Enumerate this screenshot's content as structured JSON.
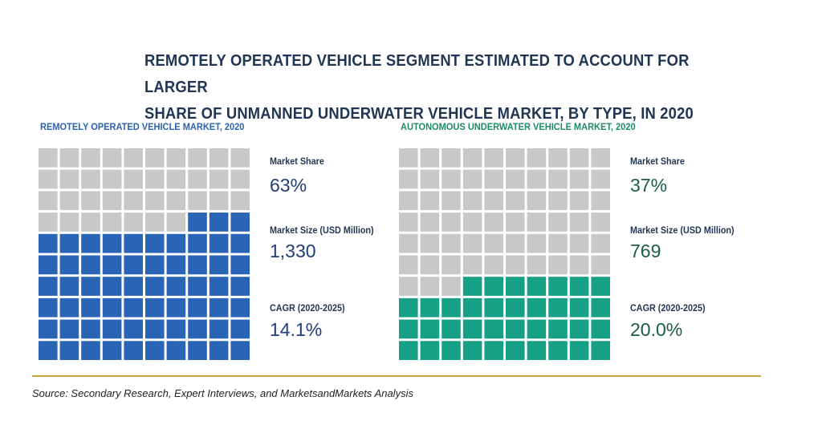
{
  "title_line1": "REMOTELY OPERATED VEHICLE SEGMENT ESTIMATED TO ACCOUNT FOR LARGER",
  "title_line2": "SHARE OF UNMANNED UNDERWATER VEHICLE MARKET, BY TYPE, IN 2020",
  "source": "Source: Secondary Research, Expert Interviews, and MarketsandMarkets Analysis",
  "colors": {
    "rov_fill": "#2a64b4",
    "auv_fill": "#16a085",
    "empty": "#c8c8c8",
    "rule": "#c9a33a"
  },
  "chart_data": [
    {
      "type": "waffle",
      "title": "REMOTELY OPERATED VEHICLE MARKET, 2020",
      "grid": {
        "rows": 10,
        "cols": 10
      },
      "filled_cells": 63,
      "market_share_label": "Market Share",
      "market_share": "63%",
      "market_size_label": "Market Size (USD Million)",
      "market_size": "1,330",
      "cagr_label": "CAGR (2020-2025)",
      "cagr": "14.1%"
    },
    {
      "type": "waffle",
      "title": "AUTONOMOUS UNDERWATER VEHICLE MARKET, 2020",
      "grid": {
        "rows": 10,
        "cols": 10
      },
      "filled_cells": 37,
      "market_share_label": "Market Share",
      "market_share": "37%",
      "market_size_label": "Market Size (USD Million)",
      "market_size": "769",
      "cagr_label": "CAGR (2020-2025)",
      "cagr": "20.0%"
    }
  ]
}
